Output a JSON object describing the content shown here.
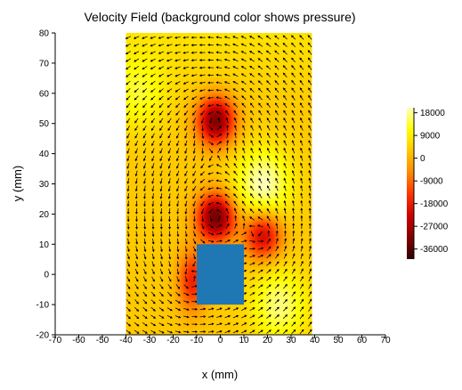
{
  "chart_data": {
    "type": "heatmap",
    "title": "Velocity Field (background color shows pressure)",
    "xlabel": "x (mm)",
    "ylabel": "y (mm)",
    "xlim": [
      -70,
      70
    ],
    "ylim": [
      -20,
      80
    ],
    "x_ticks": [
      -70,
      -60,
      -50,
      -40,
      -30,
      -20,
      -10,
      0,
      10,
      20,
      30,
      40,
      50,
      60,
      70
    ],
    "y_ticks": [
      -20,
      -10,
      0,
      10,
      20,
      30,
      40,
      50,
      60,
      70,
      80
    ],
    "field_extent": {
      "x": [
        -40,
        39
      ],
      "y": [
        -20,
        80
      ]
    },
    "obstacle": {
      "x": [
        -10,
        10
      ],
      "y": [
        -10,
        10
      ],
      "color": "#1f77b4"
    },
    "colorbar": {
      "ticks": [
        18000,
        9000,
        0,
        -9000,
        -18000,
        -27000,
        -36000
      ],
      "range": [
        -40000,
        20000
      ],
      "colors": [
        "#ffffbe",
        "#ffff00",
        "#ffc800",
        "#ff8800",
        "#ff3300",
        "#cc0000",
        "#800000",
        "#300000"
      ]
    },
    "pressure_features": [
      {
        "name": "vortex",
        "x": -2,
        "y": 51,
        "peak": -34000
      },
      {
        "name": "vortex",
        "x": -2,
        "y": 19,
        "peak": -36000
      },
      {
        "name": "vortex",
        "x": 18,
        "y": 13,
        "peak": -26000
      },
      {
        "name": "wake",
        "x": -12,
        "y": -2,
        "peak": -20000
      },
      {
        "name": "high",
        "x": 18,
        "y": 30,
        "peak": 17000
      },
      {
        "name": "high",
        "x": 25,
        "y": -10,
        "peak": 14000
      },
      {
        "name": "high",
        "x": -35,
        "y": 60,
        "peak": 10000
      }
    ],
    "vectors": {
      "dx_mm": 3.5,
      "dy_mm": 2.5,
      "color": "#000000"
    }
  }
}
